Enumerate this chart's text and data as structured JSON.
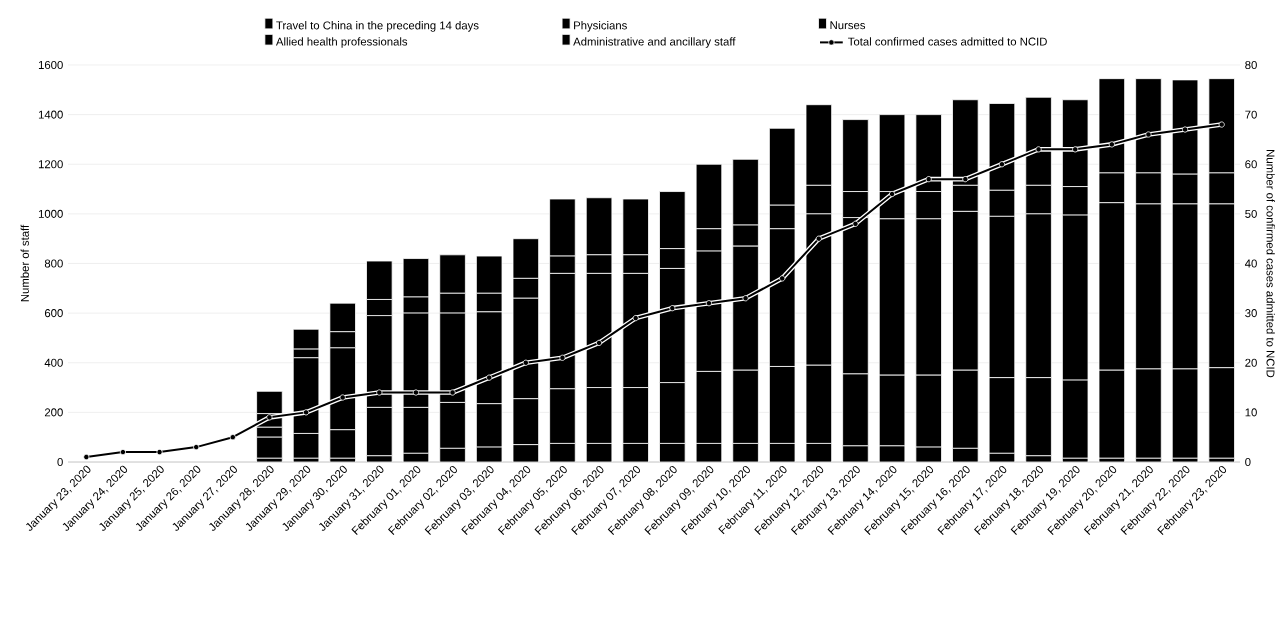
{
  "chart_data": {
    "type": "bar",
    "stacked": true,
    "categories": [
      "January 23, 2020",
      "January 24, 2020",
      "January 25, 2020",
      "January 26, 2020",
      "January 27, 2020",
      "January 28, 2020",
      "January 29, 2020",
      "January 30, 2020",
      "January 31, 2020",
      "February 01, 2020",
      "February 02, 2020",
      "February 03, 2020",
      "February 04, 2020",
      "February 05, 2020",
      "February 06, 2020",
      "February 07, 2020",
      "February 08, 2020",
      "February 09, 2020",
      "February 10, 2020",
      "February 11, 2020",
      "February 12, 2020",
      "February 13, 2020",
      "February 14, 2020",
      "February 15, 2020",
      "February 16, 2020",
      "February 17, 2020",
      "February 18, 2020",
      "February 19, 2020",
      "February 20, 2020",
      "February 21, 2020",
      "February 22, 2020",
      "February 23, 2020"
    ],
    "series": [
      {
        "name": "Travel to China in the preceding 14 days",
        "color": "#000000",
        "values": [
          null,
          null,
          null,
          null,
          null,
          15,
          15,
          15,
          25,
          35,
          55,
          60,
          70,
          75,
          75,
          75,
          75,
          75,
          75,
          75,
          75,
          65,
          65,
          60,
          55,
          35,
          25,
          15,
          15,
          15,
          15,
          15
        ]
      },
      {
        "name": "Physicians",
        "color": "#000000",
        "values": [
          null,
          null,
          null,
          null,
          null,
          85,
          100,
          115,
          195,
          185,
          185,
          175,
          185,
          220,
          225,
          225,
          245,
          290,
          295,
          310,
          315,
          290,
          285,
          290,
          315,
          305,
          315,
          315,
          355,
          360,
          360,
          365
        ]
      },
      {
        "name": "Nurses",
        "color": "#000000",
        "values": [
          null,
          null,
          null,
          null,
          null,
          40,
          305,
          330,
          370,
          380,
          360,
          370,
          405,
          465,
          460,
          460,
          460,
          485,
          500,
          555,
          610,
          630,
          630,
          630,
          640,
          650,
          660,
          665,
          675,
          665,
          665,
          660
        ]
      },
      {
        "name": "Allied health professionals",
        "color": "#000000",
        "values": [
          null,
          null,
          null,
          null,
          null,
          55,
          35,
          65,
          65,
          65,
          80,
          75,
          80,
          70,
          75,
          75,
          80,
          90,
          85,
          95,
          115,
          105,
          110,
          110,
          105,
          105,
          115,
          115,
          120,
          125,
          120,
          125
        ]
      },
      {
        "name": "Administrative and ancillary staff",
        "color": "#000000",
        "values": [
          null,
          null,
          null,
          null,
          null,
          90,
          80,
          115,
          155,
          155,
          155,
          150,
          160,
          230,
          230,
          225,
          230,
          260,
          265,
          310,
          325,
          290,
          310,
          310,
          345,
          350,
          355,
          350,
          380,
          380,
          380,
          380
        ]
      },
      {
        "name": "Total confirmed cases admitted to NCID",
        "type": "line",
        "axis": "y2",
        "marker": "circle",
        "color": "#000000",
        "values": [
          1,
          2,
          2,
          3,
          5,
          9,
          10,
          13,
          14,
          14,
          14,
          17,
          20,
          21,
          24,
          29,
          31,
          32,
          33,
          37,
          45,
          48,
          54,
          57,
          57,
          60,
          63,
          63,
          64,
          66,
          67,
          68
        ]
      }
    ],
    "ylabel": "Number of staff",
    "y2label": "Number of confirmed cases admitted to NCID",
    "ylim": [
      0,
      1600
    ],
    "yticks": [
      0,
      200,
      400,
      600,
      800,
      1000,
      1200,
      1400,
      1600
    ],
    "y2lim": [
      0,
      80
    ],
    "y2ticks": [
      0,
      10,
      20,
      30,
      40,
      50,
      60,
      70,
      80
    ],
    "grid": "y",
    "legend": "top"
  }
}
